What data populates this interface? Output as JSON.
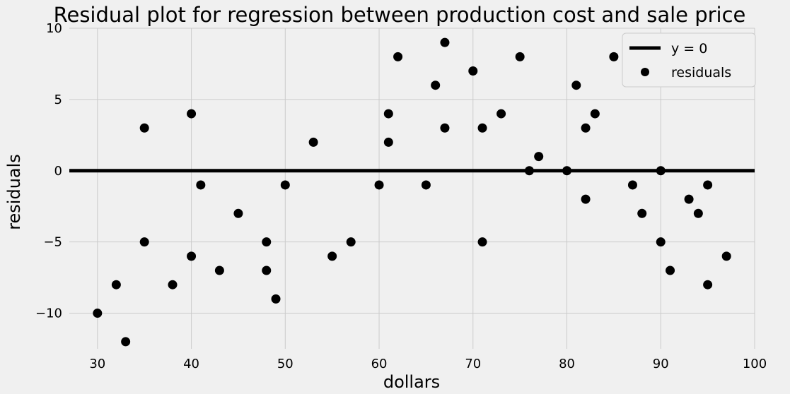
{
  "chart_data": {
    "type": "scatter",
    "title": "Residual plot for regression between production cost and sale price",
    "xlabel": "dollars",
    "ylabel": "residuals",
    "xlim": [
      27,
      100
    ],
    "ylim": [
      -12.5,
      10
    ],
    "xticks": [
      30,
      40,
      50,
      60,
      70,
      80,
      90,
      100
    ],
    "yticks": [
      -10,
      -5,
      0,
      5,
      10
    ],
    "grid": true,
    "legend_position": "top-right",
    "colors": {
      "background": "#f0f0f0",
      "grid": "#cbcbcb",
      "marker": "#000000",
      "line": "#000000"
    },
    "series": [
      {
        "name": "y = 0",
        "kind": "line",
        "y": 0
      },
      {
        "name": "residuals",
        "kind": "scatter",
        "x": [
          30,
          32,
          33,
          35,
          35,
          38,
          40,
          40,
          41,
          43,
          45,
          48,
          48,
          49,
          50,
          53,
          55,
          57,
          60,
          61,
          61,
          62,
          65,
          66,
          67,
          67,
          70,
          71,
          71,
          73,
          75,
          76,
          77,
          80,
          81,
          82,
          82,
          83,
          85,
          87,
          88,
          90,
          90,
          91,
          93,
          94,
          95,
          95,
          97
        ],
        "y": [
          -10,
          -8,
          -12,
          3,
          -5,
          -8,
          4,
          -6,
          -1,
          -7,
          -3,
          -5,
          -7,
          -9,
          -1,
          2,
          -6,
          -5,
          -1,
          4,
          2,
          8,
          -1,
          6,
          9,
          3,
          7,
          3,
          -5,
          4,
          8,
          0,
          1,
          0,
          6,
          3,
          -2,
          4,
          8,
          -1,
          -3,
          0,
          -5,
          -7,
          -2,
          -3,
          -1,
          -8,
          -6
        ]
      }
    ]
  }
}
